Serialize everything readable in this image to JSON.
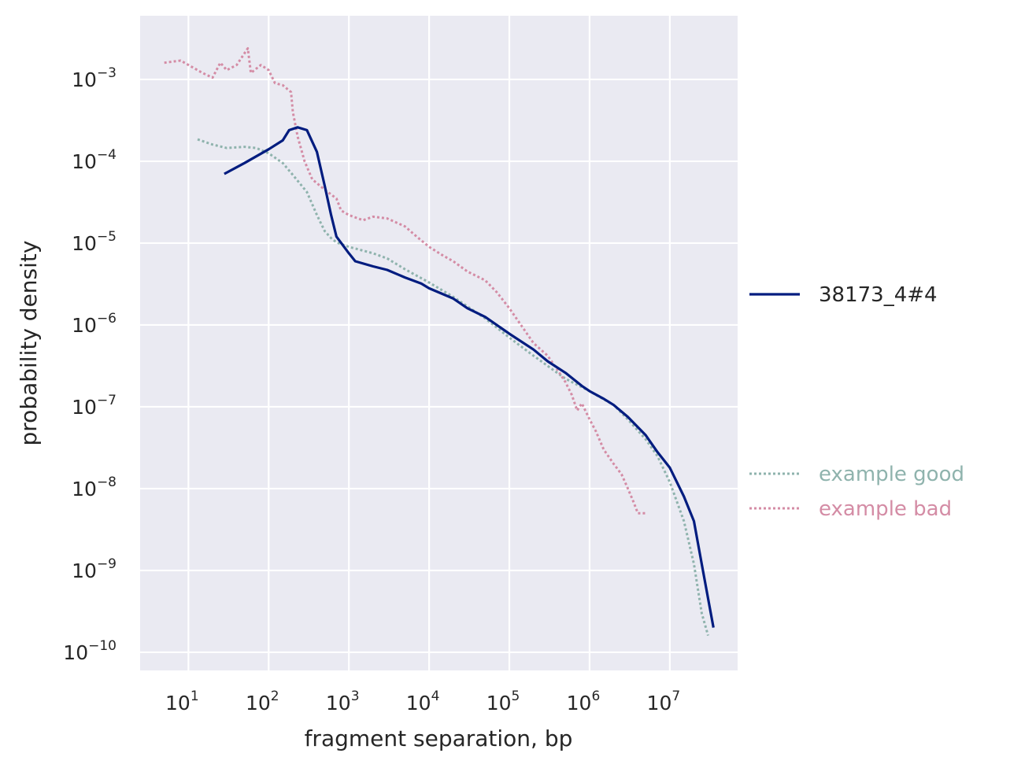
{
  "chart_data": {
    "type": "line",
    "title": "",
    "xlabel": "fragment separation, bp",
    "ylabel": "probability density",
    "x_scale": "log",
    "y_scale": "log",
    "xlim": [
      2.5,
      70000000
    ],
    "ylim": [
      6e-11,
      0.006
    ],
    "x_ticks": [
      {
        "value": 10,
        "base": "10",
        "exp": "1"
      },
      {
        "value": 100,
        "base": "10",
        "exp": "2"
      },
      {
        "value": 1000,
        "base": "10",
        "exp": "3"
      },
      {
        "value": 10000,
        "base": "10",
        "exp": "4"
      },
      {
        "value": 100000,
        "base": "10",
        "exp": "5"
      },
      {
        "value": 1000000,
        "base": "10",
        "exp": "6"
      },
      {
        "value": 10000000,
        "base": "10",
        "exp": "7"
      }
    ],
    "y_ticks": [
      {
        "value": 0.001,
        "base": "10",
        "exp": "−3"
      },
      {
        "value": 0.0001,
        "base": "10",
        "exp": "−4"
      },
      {
        "value": 1e-05,
        "base": "10",
        "exp": "−5"
      },
      {
        "value": 1e-06,
        "base": "10",
        "exp": "−6"
      },
      {
        "value": 1e-07,
        "base": "10",
        "exp": "−7"
      },
      {
        "value": 1e-08,
        "base": "10",
        "exp": "−8"
      },
      {
        "value": 1e-09,
        "base": "10",
        "exp": "−9"
      },
      {
        "value": 1e-10,
        "base": "10",
        "exp": "−10"
      }
    ],
    "grid": true,
    "background_color": "#eaeaf2",
    "grid_color": "#ffffff",
    "legend": [
      {
        "group": "upper",
        "position": "right",
        "entries": [
          "38173_4#4"
        ]
      },
      {
        "group": "lower",
        "position": "right",
        "entries": [
          "example good",
          "example bad"
        ]
      }
    ],
    "series": [
      {
        "name": "38173_4#4",
        "color": "#001c7f",
        "style": "solid",
        "legend_group": "upper",
        "points": [
          [
            28,
            7e-05
          ],
          [
            50,
            9.5e-05
          ],
          [
            100,
            0.00014
          ],
          [
            150,
            0.00018
          ],
          [
            180,
            0.00024
          ],
          [
            230,
            0.00026
          ],
          [
            300,
            0.00024
          ],
          [
            400,
            0.00013
          ],
          [
            500,
            5e-05
          ],
          [
            600,
            2.2e-05
          ],
          [
            700,
            1.2e-05
          ],
          [
            1000,
            7.5e-06
          ],
          [
            1200,
            6e-06
          ],
          [
            2000,
            5.2e-06
          ],
          [
            3000,
            4.7e-06
          ],
          [
            5000,
            3.8e-06
          ],
          [
            8000,
            3.2e-06
          ],
          [
            10000,
            2.8e-06
          ],
          [
            20000,
            2.1e-06
          ],
          [
            30000,
            1.6e-06
          ],
          [
            50000,
            1.25e-06
          ],
          [
            100000,
            7.8e-07
          ],
          [
            200000,
            5e-07
          ],
          [
            300000,
            3.6e-07
          ],
          [
            500000,
            2.6e-07
          ],
          [
            800000,
            1.8e-07
          ],
          [
            1000000,
            1.55e-07
          ],
          [
            1500000,
            1.25e-07
          ],
          [
            2000000,
            1.05e-07
          ],
          [
            3000000,
            7.5e-08
          ],
          [
            5000000,
            4.5e-08
          ],
          [
            7000000,
            2.8e-08
          ],
          [
            10000000,
            1.8e-08
          ],
          [
            15000000,
            8e-09
          ],
          [
            20000000,
            4e-09
          ],
          [
            25000000,
            1.2e-09
          ],
          [
            35000000,
            2e-10
          ]
        ]
      },
      {
        "name": "example good",
        "color": "#8fb3ad",
        "style": "dotted",
        "legend_group": "lower",
        "points": [
          [
            13,
            0.000185
          ],
          [
            20,
            0.00016
          ],
          [
            30,
            0.000145
          ],
          [
            50,
            0.00015
          ],
          [
            70,
            0.000145
          ],
          [
            100,
            0.000125
          ],
          [
            150,
            9.5e-05
          ],
          [
            200,
            6.8e-05
          ],
          [
            300,
            4.2e-05
          ],
          [
            400,
            2.2e-05
          ],
          [
            500,
            1.4e-05
          ],
          [
            600,
            1.15e-05
          ],
          [
            700,
            1.02e-05
          ],
          [
            1000,
            9e-06
          ],
          [
            2000,
            7.5e-06
          ],
          [
            3000,
            6.5e-06
          ],
          [
            5000,
            4.8e-06
          ],
          [
            10000,
            3.3e-06
          ],
          [
            20000,
            2.2e-06
          ],
          [
            50000,
            1.2e-06
          ],
          [
            100000,
            7e-07
          ],
          [
            200000,
            4.2e-07
          ],
          [
            500000,
            2.2e-07
          ],
          [
            1000000,
            1.55e-07
          ],
          [
            2000000,
            1.05e-07
          ],
          [
            3000000,
            7e-08
          ],
          [
            5000000,
            4e-08
          ],
          [
            7000000,
            2.5e-08
          ],
          [
            10000000,
            1.2e-08
          ],
          [
            15000000,
            4e-09
          ],
          [
            20000000,
            1.2e-09
          ],
          [
            25000000,
            3e-10
          ],
          [
            30000000,
            1.6e-10
          ]
        ]
      },
      {
        "name": "example bad",
        "color": "#d48ca5",
        "style": "dotted",
        "legend_group": "lower",
        "points": [
          [
            5,
            0.0016
          ],
          [
            8,
            0.0017
          ],
          [
            10,
            0.0015
          ],
          [
            15,
            0.0012
          ],
          [
            20,
            0.00105
          ],
          [
            25,
            0.0016
          ],
          [
            30,
            0.0013
          ],
          [
            40,
            0.0015
          ],
          [
            55,
            0.0024
          ],
          [
            60,
            0.0012
          ],
          [
            80,
            0.0015
          ],
          [
            100,
            0.0013
          ],
          [
            120,
            0.0009
          ],
          [
            150,
            0.00085
          ],
          [
            190,
            0.0007
          ],
          [
            200,
            0.0004
          ],
          [
            230,
            0.0002
          ],
          [
            280,
            0.0001
          ],
          [
            350,
            6e-05
          ],
          [
            500,
            4.5e-05
          ],
          [
            700,
            3.5e-05
          ],
          [
            800,
            2.5e-05
          ],
          [
            1000,
            2.2e-05
          ],
          [
            1500,
            1.9e-05
          ],
          [
            2000,
            2.1e-05
          ],
          [
            3000,
            2e-05
          ],
          [
            5000,
            1.6e-05
          ],
          [
            7000,
            1.2e-05
          ],
          [
            10000,
            9e-06
          ],
          [
            15000,
            7e-06
          ],
          [
            20000,
            6e-06
          ],
          [
            30000,
            4.5e-06
          ],
          [
            50000,
            3.5e-06
          ],
          [
            70000,
            2.5e-06
          ],
          [
            100000,
            1.6e-06
          ],
          [
            150000,
            9e-07
          ],
          [
            200000,
            6e-07
          ],
          [
            300000,
            4.2e-07
          ],
          [
            400000,
            2.8e-07
          ],
          [
            500000,
            2e-07
          ],
          [
            600000,
            1.4e-07
          ],
          [
            700000,
            9e-08
          ],
          [
            800000,
            1.1e-07
          ],
          [
            1000000,
            7e-08
          ],
          [
            1200000,
            5e-08
          ],
          [
            1500000,
            3e-08
          ],
          [
            2000000,
            2e-08
          ],
          [
            2500000,
            1.5e-08
          ],
          [
            3000000,
            1e-08
          ],
          [
            3500000,
            7e-09
          ],
          [
            4000000,
            5e-09
          ],
          [
            5000000,
            5e-09
          ]
        ]
      }
    ]
  }
}
